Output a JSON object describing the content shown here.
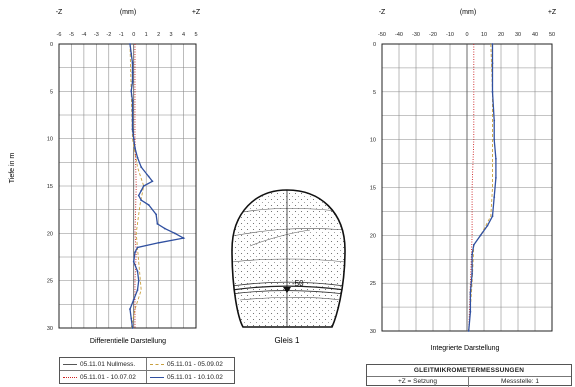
{
  "charts": {
    "left": {
      "label_minus": "-Z",
      "label_unit": "(mm)",
      "label_plus": "+Z",
      "ylabel": "Tiefe in m",
      "caption": "Differentielle Darstellung"
    },
    "right": {
      "label_minus": "-Z",
      "label_unit": "(mm)",
      "label_plus": "+Z",
      "caption": "Integrierte Darstellung"
    }
  },
  "diagram": {
    "label_depth": "-50",
    "caption": "Gleis 1"
  },
  "legend": {
    "items": [
      {
        "label": "05.11.01 Nullmess.",
        "color": "#555555",
        "dash": "solid"
      },
      {
        "label": "05.11.01 - 05.09.02",
        "color": "#c8a040",
        "dash": "dashed"
      },
      {
        "label": "05.11.01 - 10.07.02",
        "color": "#cc2222",
        "dash": "dotted"
      },
      {
        "label": "05.11.01 - 10.10.02",
        "color": "#3050a0",
        "dash": "marker"
      }
    ]
  },
  "info_box": {
    "title": "GLEITMIKROMETERMESSUNGEN",
    "left_cell": "+Z = Setzung",
    "right_cell": "Messstelle: 1"
  },
  "chart_data": [
    {
      "type": "line",
      "title": "Differentielle Darstellung",
      "xlabel": "(mm)",
      "ylabel": "Tiefe in m",
      "xlim": [
        -6,
        5
      ],
      "ylim": [
        0,
        30
      ],
      "y_inverted": true,
      "xticks": [
        "-6",
        "-5",
        "-4",
        "-3",
        "-2",
        "-1",
        "0",
        "1",
        "2",
        "3",
        "4",
        "5"
      ],
      "yticks": [
        "0",
        "5",
        "10",
        "15",
        "20",
        "25",
        "30"
      ],
      "grid": true,
      "series": [
        {
          "name": "05.11.01 Nullmess.",
          "color": "#555555",
          "points": [
            [
              0,
              0
            ],
            [
              0,
              30
            ]
          ]
        },
        {
          "name": "05.11.01 - 05.09.02",
          "color": "#c8a040",
          "points": [
            [
              -0.3,
              0
            ],
            [
              -0.2,
              5
            ],
            [
              -0.1,
              10
            ],
            [
              0.3,
              13
            ],
            [
              0.8,
              15
            ],
            [
              0.5,
              17
            ],
            [
              0.2,
              20
            ],
            [
              0.4,
              23
            ],
            [
              0.6,
              26
            ],
            [
              0.1,
              28
            ],
            [
              -0.2,
              30
            ]
          ]
        },
        {
          "name": "05.11.01 - 10.07.02",
          "color": "#cc2222",
          "points": [
            [
              0.1,
              0
            ],
            [
              0.1,
              10
            ],
            [
              0.2,
              15
            ],
            [
              0.1,
              20
            ],
            [
              0.2,
              22
            ],
            [
              0.1,
              25
            ],
            [
              0.1,
              30
            ]
          ]
        },
        {
          "name": "05.11.01 - 10.10.02",
          "color": "#3050a0",
          "points": [
            [
              -0.3,
              0
            ],
            [
              -0.2,
              1
            ],
            [
              -0.1,
              2
            ],
            [
              -0.1,
              3
            ],
            [
              -0.1,
              4
            ],
            [
              -0.2,
              5
            ],
            [
              -0.1,
              6
            ],
            [
              -0.1,
              7
            ],
            [
              -0.1,
              8
            ],
            [
              -0.1,
              9
            ],
            [
              0.0,
              10
            ],
            [
              0.1,
              11
            ],
            [
              0.3,
              12
            ],
            [
              0.6,
              13
            ],
            [
              1.2,
              14
            ],
            [
              1.5,
              14.5
            ],
            [
              0.8,
              15
            ],
            [
              0.6,
              15.5
            ],
            [
              0.4,
              16
            ],
            [
              0.6,
              16.5
            ],
            [
              1.2,
              17
            ],
            [
              1.8,
              18
            ],
            [
              1.9,
              19
            ],
            [
              2.5,
              19.5
            ],
            [
              3.3,
              20
            ],
            [
              4.0,
              20.5
            ],
            [
              2.0,
              21
            ],
            [
              0.3,
              21.5
            ],
            [
              0.1,
              22
            ],
            [
              0.0,
              23
            ],
            [
              0.3,
              24
            ],
            [
              0.4,
              25
            ],
            [
              0.3,
              26
            ],
            [
              0.0,
              27
            ],
            [
              -0.3,
              28
            ],
            [
              -0.2,
              29
            ],
            [
              -0.1,
              30
            ]
          ]
        }
      ]
    },
    {
      "type": "line",
      "title": "Integrierte Darstellung",
      "xlabel": "(mm)",
      "ylabel": "",
      "xlim": [
        -50,
        50
      ],
      "ylim": [
        0,
        30
      ],
      "y_inverted": true,
      "xticks": [
        "-50",
        "-40",
        "-30",
        "-20",
        "-10",
        "0",
        "10",
        "20",
        "30",
        "40",
        "50"
      ],
      "yticks": [
        "0",
        "5",
        "10",
        "15",
        "20",
        "25",
        "30"
      ],
      "grid": true,
      "series": [
        {
          "name": "05.11.01 Nullmess.",
          "color": "#555555",
          "points": [
            [
              0,
              0
            ],
            [
              0,
              30
            ]
          ]
        },
        {
          "name": "05.11.01 - 05.09.02",
          "color": "#c8a040",
          "points": [
            [
              14,
              0
            ],
            [
              15,
              5
            ],
            [
              15,
              10
            ],
            [
              15,
              15
            ],
            [
              14,
              18
            ],
            [
              8,
              20
            ],
            [
              4,
              21
            ],
            [
              3,
              25
            ],
            [
              1,
              30
            ]
          ]
        },
        {
          "name": "05.11.01 - 10.07.02",
          "color": "#cc2222",
          "points": [
            [
              4,
              0
            ],
            [
              4,
              10
            ],
            [
              3,
              15
            ],
            [
              3,
              20
            ],
            [
              2,
              25
            ],
            [
              1,
              30
            ]
          ]
        },
        {
          "name": "05.11.01 - 10.10.02",
          "color": "#3050a0",
          "points": [
            [
              15,
              0
            ],
            [
              15,
              2
            ],
            [
              15,
              5
            ],
            [
              16,
              8
            ],
            [
              16,
              10
            ],
            [
              17,
              12
            ],
            [
              17,
              14
            ],
            [
              16,
              16
            ],
            [
              15,
              18
            ],
            [
              12,
              19
            ],
            [
              8,
              20
            ],
            [
              4,
              21
            ],
            [
              3,
              22
            ],
            [
              3,
              24
            ],
            [
              2,
              26
            ],
            [
              2,
              28
            ],
            [
              1,
              30
            ]
          ]
        }
      ]
    }
  ]
}
